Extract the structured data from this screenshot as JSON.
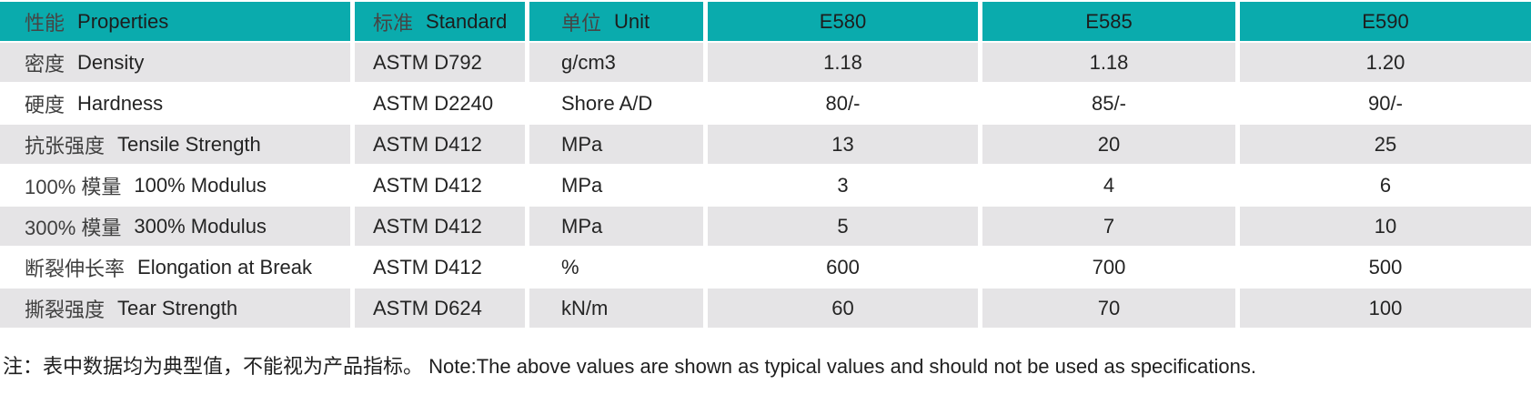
{
  "table": {
    "header": {
      "properties_zh": "性能",
      "properties_en": "Properties",
      "standard_zh": "标准",
      "standard_en": "Standard",
      "unit_zh": "单位",
      "unit_en": "Unit",
      "grades": [
        "E580",
        "E585",
        "E590"
      ]
    },
    "rows": [
      {
        "zh": "密度",
        "en": "Density",
        "standard": "ASTM D792",
        "unit": "g/cm3",
        "values": [
          "1.18",
          "1.18",
          "1.20"
        ]
      },
      {
        "zh": "硬度",
        "en": "Hardness",
        "standard": "ASTM D2240",
        "unit": "Shore A/D",
        "values": [
          "80/-",
          "85/-",
          "90/-"
        ]
      },
      {
        "zh": "抗张强度",
        "en": "Tensile Strength",
        "standard": "ASTM D412",
        "unit": "MPa",
        "values": [
          "13",
          "20",
          "25"
        ]
      },
      {
        "zh": "100% 模量",
        "en": "100% Modulus",
        "standard": "ASTM D412",
        "unit": "MPa",
        "values": [
          "3",
          "4",
          "6"
        ]
      },
      {
        "zh": "300% 模量",
        "en": "300% Modulus",
        "standard": "ASTM D412",
        "unit": "MPa",
        "values": [
          "5",
          "7",
          "10"
        ]
      },
      {
        "zh": "断裂伸长率",
        "en": "Elongation at Break",
        "standard": "ASTM D412",
        "unit": "%",
        "values": [
          "600",
          "700",
          "500"
        ]
      },
      {
        "zh": "撕裂强度",
        "en": "Tear Strength",
        "standard": "ASTM D624",
        "unit": "kN/m",
        "values": [
          "60",
          "70",
          "100"
        ]
      }
    ]
  },
  "note": "注：表中数据均为典型值，不能视为产品指标。 Note:The above values are shown as typical values and should not be used as specifications.",
  "colors": {
    "header_bg": "#0aabad",
    "alt_row_bg": "#e5e4e6",
    "text": "#242424"
  }
}
